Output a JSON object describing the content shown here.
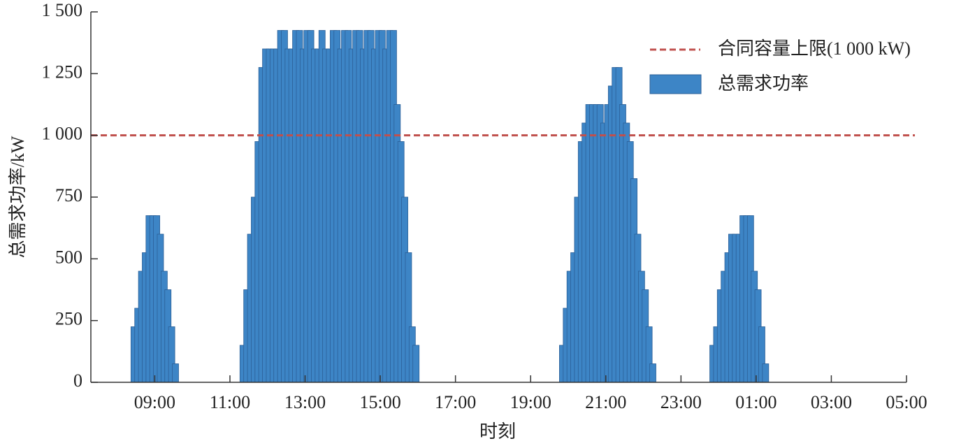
{
  "chart_data": {
    "type": "bar",
    "x_label": "时刻",
    "y_label": "总需求功率/kW",
    "xlim": [
      7.3,
      29.0
    ],
    "xticks": [
      {
        "value": 9,
        "label": "09:00"
      },
      {
        "value": 11,
        "label": "11:00"
      },
      {
        "value": 13,
        "label": "13:00"
      },
      {
        "value": 15,
        "label": "15:00"
      },
      {
        "value": 17,
        "label": "17:00"
      },
      {
        "value": 19,
        "label": "19:00"
      },
      {
        "value": 21,
        "label": "21:00"
      },
      {
        "value": 23,
        "label": "23:00"
      },
      {
        "value": 25,
        "label": "01:00"
      },
      {
        "value": 27,
        "label": "03:00"
      },
      {
        "value": 29,
        "label": "05:00"
      }
    ],
    "ylim": [
      0,
      1500
    ],
    "yticks": [
      0,
      250,
      500,
      750,
      {
        "value": 1000,
        "label": "1 000"
      },
      {
        "value": 1250,
        "label": "1 250"
      },
      {
        "value": 1500,
        "label": "1 500"
      }
    ],
    "series": [
      {
        "name": "总需求功率",
        "color": "#3d85c6",
        "x": [
          8.45,
          8.55,
          8.65,
          8.75,
          8.85,
          8.95,
          9.05,
          9.15,
          9.25,
          9.35,
          9.45,
          9.55,
          11.35,
          11.45,
          11.55,
          11.65,
          11.75,
          11.85,
          11.95,
          12.05,
          12.15,
          12.25,
          12.35,
          12.45,
          12.55,
          12.65,
          12.75,
          12.85,
          12.95,
          13.05,
          13.15,
          13.25,
          13.35,
          13.45,
          13.55,
          13.65,
          13.75,
          13.85,
          13.95,
          14.05,
          14.15,
          14.25,
          14.35,
          14.45,
          14.55,
          14.65,
          14.75,
          14.85,
          14.95,
          15.05,
          15.15,
          15.25,
          15.35,
          15.45,
          15.55,
          15.65,
          15.75,
          15.85,
          15.95,
          19.85,
          19.95,
          20.05,
          20.15,
          20.25,
          20.35,
          20.45,
          20.55,
          20.65,
          20.75,
          20.85,
          20.95,
          21.05,
          21.15,
          21.25,
          21.35,
          21.45,
          21.55,
          21.65,
          21.75,
          21.85,
          21.95,
          22.05,
          22.15,
          22.25,
          23.85,
          23.95,
          24.05,
          24.15,
          24.25,
          24.35,
          24.45,
          24.55,
          24.65,
          24.75,
          24.85,
          24.95,
          25.05,
          25.15,
          25.25
        ],
        "values": [
          225,
          300,
          450,
          525,
          675,
          675,
          675,
          600,
          450,
          375,
          225,
          75,
          150,
          375,
          600,
          750,
          975,
          1275,
          1350,
          1350,
          1350,
          1350,
          1425,
          1425,
          1350,
          1350,
          1425,
          1425,
          1350,
          1425,
          1425,
          1350,
          1350,
          1425,
          1350,
          1350,
          1425,
          1425,
          1350,
          1425,
          1425,
          1350,
          1425,
          1425,
          1350,
          1425,
          1425,
          1350,
          1425,
          1425,
          1350,
          1425,
          1425,
          1125,
          975,
          750,
          525,
          225,
          150,
          150,
          300,
          450,
          525,
          750,
          975,
          1050,
          1125,
          1125,
          1125,
          1125,
          1050,
          1125,
          1200,
          1275,
          1275,
          1125,
          1050,
          975,
          825,
          600,
          450,
          375,
          225,
          75,
          150,
          225,
          375,
          450,
          525,
          600,
          600,
          600,
          675,
          675,
          675,
          450,
          375,
          225,
          75
        ]
      }
    ],
    "reference_line": {
      "name": "合同容量上限(1 000 kW)",
      "value": 1000,
      "color": "#c0504d"
    }
  }
}
